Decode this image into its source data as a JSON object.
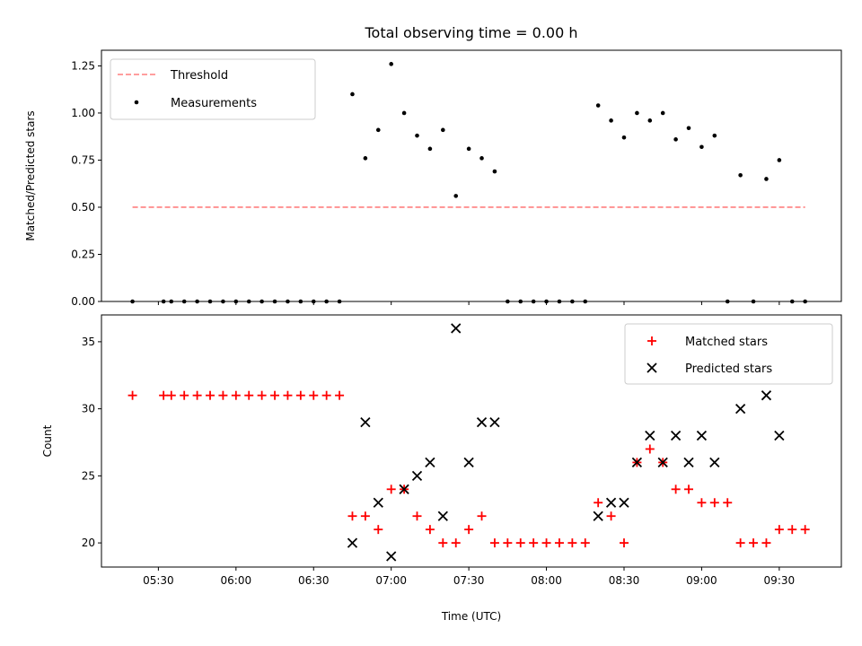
{
  "chart_data": [
    {
      "type": "scatter",
      "title": "Total observing time = 0.00 h",
      "xlabel": "",
      "ylabel": "Matched/Predicted stars",
      "ylim": [
        0,
        1.333
      ],
      "yticks": [
        0.0,
        0.25,
        0.5,
        0.75,
        1.0,
        1.25
      ],
      "ytick_labels": [
        "0.00",
        "0.25",
        "0.50",
        "0.75",
        "1.00",
        "1.25"
      ],
      "legend": {
        "placement": "upper-left",
        "entries": [
          "Threshold",
          "Measurements"
        ]
      },
      "threshold": {
        "name": "Threshold",
        "value": 0.5,
        "x_range": [
          "05:20",
          "09:40"
        ],
        "color": "#ff7f7f",
        "style": "dashed"
      },
      "series": [
        {
          "name": "Measurements",
          "color": "#000000",
          "marker": "dot",
          "points": [
            [
              "05:20",
              0
            ],
            [
              "05:32",
              0
            ],
            [
              "05:35",
              0
            ],
            [
              "05:40",
              0
            ],
            [
              "05:45",
              0
            ],
            [
              "05:50",
              0
            ],
            [
              "05:55",
              0
            ],
            [
              "06:00",
              0
            ],
            [
              "06:05",
              0
            ],
            [
              "06:10",
              0
            ],
            [
              "06:15",
              0
            ],
            [
              "06:20",
              0
            ],
            [
              "06:25",
              0
            ],
            [
              "06:30",
              0
            ],
            [
              "06:35",
              0
            ],
            [
              "06:40",
              0
            ],
            [
              "06:45",
              1.1
            ],
            [
              "06:50",
              0.76
            ],
            [
              "06:55",
              0.91
            ],
            [
              "07:00",
              1.26
            ],
            [
              "07:05",
              1.0
            ],
            [
              "07:10",
              0.88
            ],
            [
              "07:15",
              0.81
            ],
            [
              "07:20",
              0.91
            ],
            [
              "07:25",
              0.56
            ],
            [
              "07:30",
              0.81
            ],
            [
              "07:35",
              0.76
            ],
            [
              "07:40",
              0.69
            ],
            [
              "07:45",
              0
            ],
            [
              "07:50",
              0
            ],
            [
              "07:55",
              0
            ],
            [
              "08:00",
              0
            ],
            [
              "08:05",
              0
            ],
            [
              "08:10",
              0
            ],
            [
              "08:15",
              0
            ],
            [
              "08:20",
              1.04
            ],
            [
              "08:25",
              0.96
            ],
            [
              "08:30",
              0.87
            ],
            [
              "08:35",
              1.0
            ],
            [
              "08:40",
              0.96
            ],
            [
              "08:45",
              1.0
            ],
            [
              "08:50",
              0.86
            ],
            [
              "08:55",
              0.92
            ],
            [
              "09:00",
              0.82
            ],
            [
              "09:05",
              0.88
            ],
            [
              "09:10",
              0
            ],
            [
              "09:15",
              0.67
            ],
            [
              "09:20",
              0
            ],
            [
              "09:25",
              0.65
            ],
            [
              "09:30",
              0.75
            ],
            [
              "09:35",
              0
            ],
            [
              "09:40",
              0
            ]
          ]
        }
      ]
    },
    {
      "type": "scatter",
      "title": "",
      "xlabel": "Time (UTC)",
      "ylabel": "Count",
      "ylim": [
        18.2,
        37.0
      ],
      "yticks": [
        20,
        25,
        30,
        35
      ],
      "ytick_labels": [
        "20",
        "25",
        "30",
        "35"
      ],
      "xlim": [
        "05:08",
        "09:54"
      ],
      "xticks": [
        "05:30",
        "06:00",
        "06:30",
        "07:00",
        "07:30",
        "08:00",
        "08:30",
        "09:00",
        "09:30"
      ],
      "legend": {
        "placement": "upper-right",
        "entries": [
          "Matched stars",
          "Predicted stars"
        ]
      },
      "series": [
        {
          "name": "Matched stars",
          "color": "#ff0000",
          "marker": "plus",
          "points": [
            [
              "05:20",
              31
            ],
            [
              "05:32",
              31
            ],
            [
              "05:35",
              31
            ],
            [
              "05:40",
              31
            ],
            [
              "05:45",
              31
            ],
            [
              "05:50",
              31
            ],
            [
              "05:55",
              31
            ],
            [
              "06:00",
              31
            ],
            [
              "06:05",
              31
            ],
            [
              "06:10",
              31
            ],
            [
              "06:15",
              31
            ],
            [
              "06:20",
              31
            ],
            [
              "06:25",
              31
            ],
            [
              "06:30",
              31
            ],
            [
              "06:35",
              31
            ],
            [
              "06:40",
              31
            ],
            [
              "06:45",
              22
            ],
            [
              "06:50",
              22
            ],
            [
              "06:55",
              21
            ],
            [
              "07:00",
              24
            ],
            [
              "07:05",
              24
            ],
            [
              "07:10",
              22
            ],
            [
              "07:15",
              21
            ],
            [
              "07:20",
              20
            ],
            [
              "07:25",
              20
            ],
            [
              "07:30",
              21
            ],
            [
              "07:35",
              22
            ],
            [
              "07:40",
              20
            ],
            [
              "07:45",
              20
            ],
            [
              "07:50",
              20
            ],
            [
              "07:55",
              20
            ],
            [
              "08:00",
              20
            ],
            [
              "08:05",
              20
            ],
            [
              "08:10",
              20
            ],
            [
              "08:15",
              20
            ],
            [
              "08:20",
              23
            ],
            [
              "08:25",
              22
            ],
            [
              "08:30",
              20
            ],
            [
              "08:35",
              26
            ],
            [
              "08:40",
              27
            ],
            [
              "08:45",
              26
            ],
            [
              "08:50",
              24
            ],
            [
              "08:55",
              24
            ],
            [
              "09:00",
              23
            ],
            [
              "09:05",
              23
            ],
            [
              "09:10",
              23
            ],
            [
              "09:15",
              20
            ],
            [
              "09:20",
              20
            ],
            [
              "09:25",
              20
            ],
            [
              "09:30",
              21
            ],
            [
              "09:35",
              21
            ],
            [
              "09:40",
              21
            ]
          ]
        },
        {
          "name": "Predicted stars",
          "color": "#000000",
          "marker": "x",
          "points": [
            [
              "06:45",
              20
            ],
            [
              "06:50",
              29
            ],
            [
              "06:55",
              23
            ],
            [
              "07:00",
              19
            ],
            [
              "07:05",
              24
            ],
            [
              "07:10",
              25
            ],
            [
              "07:15",
              26
            ],
            [
              "07:20",
              22
            ],
            [
              "07:25",
              36
            ],
            [
              "07:30",
              26
            ],
            [
              "07:35",
              29
            ],
            [
              "07:40",
              29
            ],
            [
              "08:20",
              22
            ],
            [
              "08:25",
              23
            ],
            [
              "08:30",
              23
            ],
            [
              "08:35",
              26
            ],
            [
              "08:40",
              28
            ],
            [
              "08:45",
              26
            ],
            [
              "08:50",
              28
            ],
            [
              "08:55",
              26
            ],
            [
              "09:00",
              28
            ],
            [
              "09:05",
              26
            ],
            [
              "09:15",
              30
            ],
            [
              "09:25",
              31
            ],
            [
              "09:30",
              28
            ]
          ]
        }
      ]
    }
  ]
}
